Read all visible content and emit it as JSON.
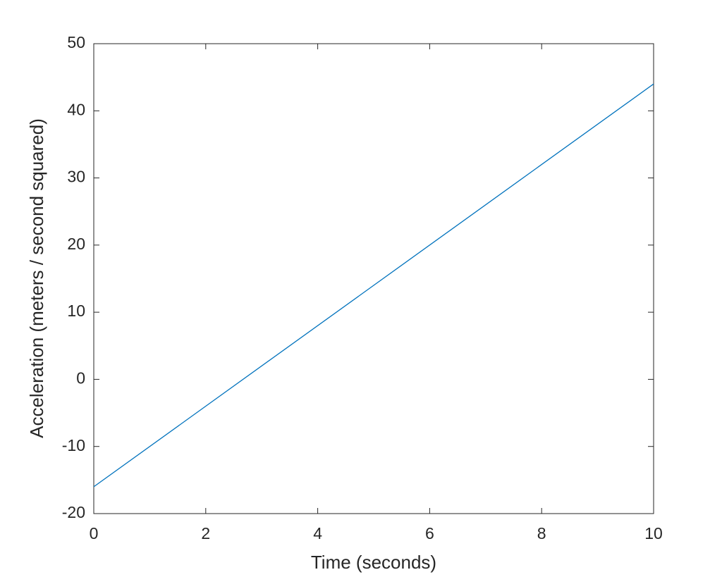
{
  "chart_data": {
    "type": "line",
    "xlabel": "Time (seconds)",
    "ylabel": "Acceleration (meters / second squared)",
    "x": [
      0,
      10
    ],
    "series": [
      {
        "color": "#0072bd",
        "values": [
          -16,
          44
        ]
      }
    ],
    "xlim": [
      0,
      10
    ],
    "xticks": [
      0,
      2,
      4,
      6,
      8,
      10
    ],
    "ylim": [
      -20,
      50
    ],
    "yticks": [
      -20,
      -10,
      0,
      10,
      20,
      30,
      40,
      50
    ],
    "grid": false,
    "box": true
  }
}
